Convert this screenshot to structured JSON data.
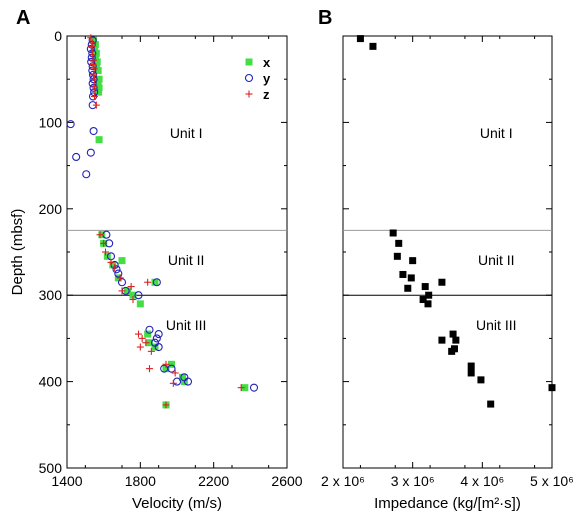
{
  "chart_data": [
    {
      "panel": "A",
      "type": "scatter",
      "xlabel": "Velocity (m/s)",
      "ylabel": "Depth (mbsf)",
      "xlim": [
        1400,
        2600
      ],
      "ylim": [
        0,
        500
      ],
      "y_inverted": true,
      "x_ticks": [
        "1400",
        "1800",
        "2200",
        "2600"
      ],
      "y_ticks": [
        "0",
        "100",
        "200",
        "300",
        "400",
        "500"
      ],
      "boundaries": [
        225,
        300
      ],
      "boundary_colors": [
        "#999999",
        "#000000"
      ],
      "units": [
        {
          "label": "Unit I",
          "x": 2050,
          "y": 118
        },
        {
          "label": "Unit II",
          "x": 2050,
          "y": 265
        },
        {
          "label": "Unit III",
          "x": 2050,
          "y": 340
        }
      ],
      "legend_position": "top-right",
      "series": [
        {
          "name": "x",
          "marker": "square",
          "color": "#44dd44",
          "points": [
            [
              1545,
              5
            ],
            [
              1555,
              10
            ],
            [
              1550,
              15
            ],
            [
              1560,
              20
            ],
            [
              1555,
              25
            ],
            [
              1565,
              30
            ],
            [
              1560,
              35
            ],
            [
              1570,
              40
            ],
            [
              1575,
              50
            ],
            [
              1570,
              55
            ],
            [
              1575,
              60
            ],
            [
              1572,
              65
            ],
            [
              1575,
              120
            ],
            [
              1590,
              230
            ],
            [
              1600,
              240
            ],
            [
              1620,
              255
            ],
            [
              1650,
              265
            ],
            [
              1700,
              260
            ],
            [
              1680,
              280
            ],
            [
              1730,
              295
            ],
            [
              1760,
              300
            ],
            [
              1800,
              310
            ],
            [
              1880,
              285
            ],
            [
              1840,
              345
            ],
            [
              1850,
              355
            ],
            [
              1880,
              360
            ],
            [
              1940,
              385
            ],
            [
              1970,
              380
            ],
            [
              2030,
              395
            ],
            [
              2040,
              400
            ],
            [
              2370,
              407
            ],
            [
              1940,
              427
            ]
          ]
        },
        {
          "name": "y",
          "marker": "circle",
          "color": "#2222bb",
          "points": [
            [
              1540,
              5
            ],
            [
              1535,
              10
            ],
            [
              1530,
              15
            ],
            [
              1538,
              20
            ],
            [
              1535,
              25
            ],
            [
              1532,
              30
            ],
            [
              1540,
              35
            ],
            [
              1538,
              40
            ],
            [
              1542,
              45
            ],
            [
              1545,
              50
            ],
            [
              1540,
              55
            ],
            [
              1545,
              60
            ],
            [
              1548,
              65
            ],
            [
              1542,
              70
            ],
            [
              1540,
              80
            ],
            [
              1420,
              102
            ],
            [
              1545,
              110
            ],
            [
              1530,
              135
            ],
            [
              1450,
              140
            ],
            [
              1505,
              160
            ],
            [
              1615,
              230
            ],
            [
              1630,
              240
            ],
            [
              1640,
              255
            ],
            [
              1660,
              265
            ],
            [
              1670,
              270
            ],
            [
              1680,
              275
            ],
            [
              1700,
              285
            ],
            [
              1720,
              295
            ],
            [
              1790,
              300
            ],
            [
              1890,
              285
            ],
            [
              1850,
              340
            ],
            [
              1900,
              345
            ],
            [
              1890,
              350
            ],
            [
              1880,
              355
            ],
            [
              1900,
              360
            ],
            [
              1930,
              385
            ],
            [
              1970,
              385
            ],
            [
              2000,
              400
            ],
            [
              2060,
              400
            ],
            [
              2040,
              395
            ],
            [
              2420,
              407
            ]
          ]
        },
        {
          "name": "z",
          "marker": "plus",
          "color": "#dd2222",
          "points": [
            [
              1530,
              2
            ],
            [
              1540,
              8
            ],
            [
              1535,
              12
            ],
            [
              1538,
              18
            ],
            [
              1540,
              22
            ],
            [
              1545,
              28
            ],
            [
              1542,
              33
            ],
            [
              1548,
              38
            ],
            [
              1545,
              45
            ],
            [
              1550,
              50
            ],
            [
              1548,
              58
            ],
            [
              1552,
              62
            ],
            [
              1550,
              70
            ],
            [
              1560,
              80
            ],
            [
              1580,
              230
            ],
            [
              1600,
              240
            ],
            [
              1610,
              250
            ],
            [
              1640,
              262
            ],
            [
              1660,
              268
            ],
            [
              1690,
              280
            ],
            [
              1700,
              295
            ],
            [
              1750,
              290
            ],
            [
              1760,
              305
            ],
            [
              1840,
              285
            ],
            [
              1790,
              345
            ],
            [
              1810,
              350
            ],
            [
              1830,
              355
            ],
            [
              1800,
              360
            ],
            [
              1860,
              365
            ],
            [
              1850,
              385
            ],
            [
              1940,
              380
            ],
            [
              1990,
              390
            ],
            [
              1980,
              402
            ],
            [
              2350,
              407
            ],
            [
              1940,
              427
            ]
          ]
        }
      ]
    },
    {
      "panel": "B",
      "type": "scatter",
      "xlabel": "Impedance (kg/[m²·s])",
      "ylabel": "",
      "xlim": [
        2000000,
        5000000
      ],
      "ylim": [
        0,
        500
      ],
      "y_inverted": true,
      "x_ticks": [
        "2 x 10⁶",
        "3 x 10⁶",
        "4 x 10⁶",
        "5 x 10⁶"
      ],
      "boundaries": [
        225,
        300
      ],
      "boundary_colors": [
        "#999999",
        "#000000"
      ],
      "units": [
        {
          "label": "Unit I",
          "x": 4200000,
          "y": 118
        },
        {
          "label": "Unit II",
          "x": 4200000,
          "y": 265
        },
        {
          "label": "Unit III",
          "x": 4200000,
          "y": 340
        }
      ],
      "series": [
        {
          "marker": "square",
          "color": "#000000",
          "points": [
            [
              2250000,
              3
            ],
            [
              2430000,
              12
            ],
            [
              2720000,
              228
            ],
            [
              2800000,
              240
            ],
            [
              2780000,
              255
            ],
            [
              2860000,
              276
            ],
            [
              3000000,
              260
            ],
            [
              2980000,
              280
            ],
            [
              2930000,
              292
            ],
            [
              3180000,
              290
            ],
            [
              3230000,
              300
            ],
            [
              3150000,
              305
            ],
            [
              3220000,
              310
            ],
            [
              3420000,
              285
            ],
            [
              3420000,
              352
            ],
            [
              3580000,
              345
            ],
            [
              3620000,
              352
            ],
            [
              3600000,
              362
            ],
            [
              3560000,
              365
            ],
            [
              3840000,
              382
            ],
            [
              3840000,
              390
            ],
            [
              3980000,
              398
            ],
            [
              4120000,
              426
            ],
            [
              5020000,
              407
            ]
          ]
        }
      ]
    }
  ],
  "panel_letters": [
    "A",
    "B"
  ],
  "legend": [
    {
      "label": "x"
    },
    {
      "label": "y"
    },
    {
      "label": "z"
    }
  ]
}
